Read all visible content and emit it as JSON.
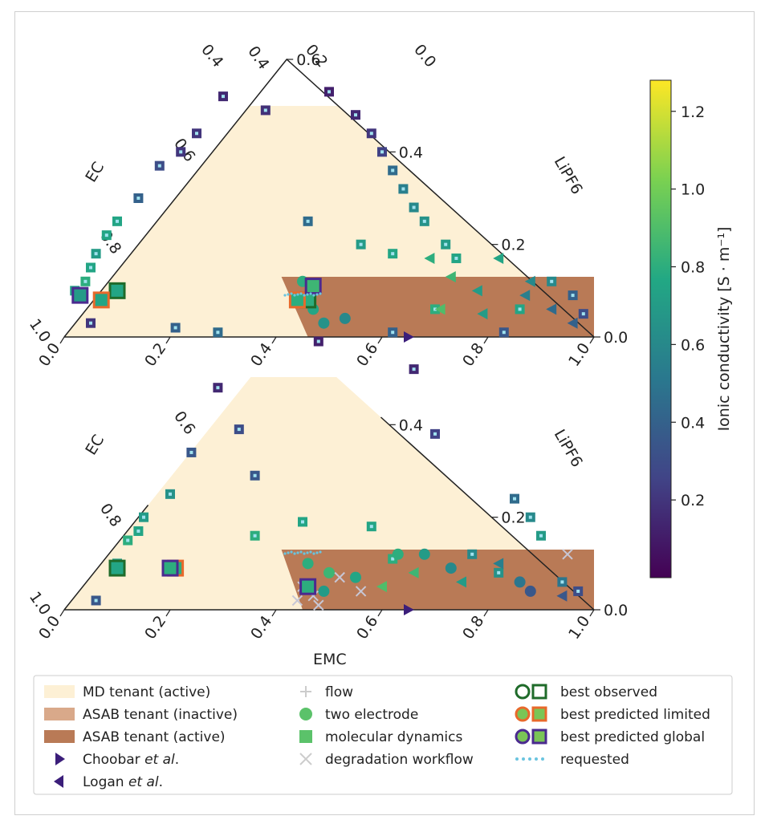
{
  "chart_data": [
    {
      "type": "scatter",
      "panel": "top",
      "axes": {
        "bottom": {
          "label": "",
          "ticks": [
            "0.0",
            "0.2",
            "0.4",
            "0.6",
            "0.8",
            "1.0"
          ]
        },
        "left": {
          "label": "EC",
          "ticks": [
            "1.0",
            "0.8",
            "0.6",
            "0.4"
          ]
        },
        "top": {
          "ticks": [
            "0.4",
            "0.2",
            "0.0"
          ]
        },
        "right": {
          "label": "LiPF6",
          "ticks": [
            "0.0",
            "0.2",
            "0.4",
            "0.6"
          ]
        }
      },
      "regions": [
        {
          "name": "MD tenant (active)",
          "color": "#fdf0d5",
          "polygon": [
            [
              0.0,
              0.0
            ],
            [
              0.0,
              0.58
            ],
            [
              0.42,
              0.58
            ],
            [
              1.0,
              0.0
            ]
          ]
        },
        {
          "name": "ASAB tenant (active)",
          "color": "#b97a56",
          "polygon": [
            [
              0.46,
              0.0
            ],
            [
              0.41,
              0.13
            ],
            [
              1.0,
              0.13
            ],
            [
              1.0,
              0.0
            ]
          ]
        }
      ],
      "series": [
        {
          "name": "molecular dynamics",
          "marker": "square",
          "points": [
            [
              0.05,
              0.03,
              0.2
            ],
            [
              0.21,
              0.02,
              0.4
            ],
            [
              0.29,
              0.01,
              0.45
            ],
            [
              0.62,
              0.01,
              0.4
            ],
            [
              0.83,
              0.01,
              0.35
            ],
            [
              0.02,
              0.1,
              0.75
            ],
            [
              0.04,
              0.12,
              0.8
            ],
            [
              0.05,
              0.15,
              0.75
            ],
            [
              0.06,
              0.18,
              0.7
            ],
            [
              0.08,
              0.22,
              0.75
            ],
            [
              0.1,
              0.25,
              0.75
            ],
            [
              0.14,
              0.3,
              0.4
            ],
            [
              0.18,
              0.37,
              0.3
            ],
            [
              0.22,
              0.4,
              0.2
            ],
            [
              0.25,
              0.44,
              0.2
            ],
            [
              0.3,
              0.52,
              0.15
            ],
            [
              0.38,
              0.49,
              0.18
            ],
            [
              0.5,
              0.53,
              0.12
            ],
            [
              0.55,
              0.48,
              0.15
            ],
            [
              0.58,
              0.44,
              0.2
            ],
            [
              0.6,
              0.4,
              0.25
            ],
            [
              0.62,
              0.36,
              0.45
            ],
            [
              0.64,
              0.32,
              0.55
            ],
            [
              0.66,
              0.28,
              0.6
            ],
            [
              0.68,
              0.25,
              0.65
            ],
            [
              0.72,
              0.2,
              0.7
            ],
            [
              0.74,
              0.17,
              0.75
            ],
            [
              0.46,
              0.25,
              0.45
            ],
            [
              0.56,
              0.2,
              0.7
            ],
            [
              0.62,
              0.18,
              0.75
            ],
            [
              0.7,
              0.06,
              0.8
            ],
            [
              0.86,
              0.06,
              0.75
            ],
            [
              0.92,
              0.12,
              0.6
            ],
            [
              0.96,
              0.09,
              0.4
            ],
            [
              0.98,
              0.05,
              0.3
            ]
          ]
        },
        {
          "name": "two electrode",
          "marker": "circle",
          "points": [
            [
              0.45,
              0.12,
              0.8
            ],
            [
              0.47,
              0.1,
              0.85
            ],
            [
              0.47,
              0.06,
              0.75
            ],
            [
              0.53,
              0.04,
              0.6
            ],
            [
              0.49,
              0.03,
              0.65
            ],
            [
              0.44,
              0.08,
              0.8
            ]
          ]
        },
        {
          "name": "Logan et al.",
          "marker": "triangle-left",
          "points": [
            [
              0.69,
              0.17,
              0.8
            ],
            [
              0.82,
              0.17,
              0.75
            ],
            [
              0.73,
              0.13,
              0.85
            ],
            [
              0.88,
              0.12,
              0.6
            ],
            [
              0.78,
              0.1,
              0.7
            ],
            [
              0.87,
              0.09,
              0.55
            ],
            [
              0.71,
              0.06,
              0.9
            ],
            [
              0.79,
              0.05,
              0.7
            ],
            [
              0.92,
              0.06,
              0.45
            ],
            [
              0.96,
              0.03,
              0.4
            ]
          ]
        },
        {
          "name": "Choobar et al.",
          "marker": "triangle-right",
          "points": [
            [
              0.65,
              0.0,
              0.1
            ]
          ]
        },
        {
          "name": "best observed",
          "marker": "circle-square-outline",
          "points": [
            [
              0.1,
              0.1,
              0.75
            ],
            [
              0.46,
              0.08,
              0.8
            ]
          ]
        },
        {
          "name": "best predicted limited",
          "marker": "circle-square-outline",
          "points": [
            [
              0.07,
              0.08,
              0.75
            ],
            [
              0.44,
              0.08,
              0.8
            ]
          ]
        },
        {
          "name": "best predicted global",
          "marker": "circle-square-outline",
          "points": [
            [
              0.03,
              0.09,
              0.7
            ],
            [
              0.47,
              0.11,
              0.85
            ]
          ]
        }
      ]
    },
    {
      "type": "scatter",
      "panel": "bottom",
      "axes": {
        "bottom": {
          "label": "EMC",
          "ticks": [
            "0.0",
            "0.2",
            "0.4",
            "0.6",
            "0.8",
            "1.0"
          ]
        },
        "left": {
          "label": "EC",
          "ticks": [
            "1.0",
            "0.8",
            "0.6"
          ]
        },
        "right": {
          "label": "LiPF6",
          "ticks": [
            "0.0",
            "0.2",
            "0.4"
          ]
        }
      },
      "regions": [
        {
          "name": "MD tenant (active)",
          "color": "#fdf0d5",
          "polygon": [
            [
              0.0,
              0.0
            ],
            [
              0.0,
              0.58
            ],
            [
              0.42,
              0.58
            ],
            [
              1.0,
              0.0
            ]
          ]
        },
        {
          "name": "ASAB tenant (active)",
          "color": "#b97a56",
          "polygon": [
            [
              0.45,
              0.0
            ],
            [
              0.41,
              0.13
            ],
            [
              1.0,
              0.13
            ],
            [
              1.0,
              0.0
            ]
          ]
        }
      ],
      "series": [
        {
          "name": "molecular dynamics",
          "marker": "square",
          "points": [
            [
              0.06,
              0.02,
              0.35
            ],
            [
              0.1,
              0.1,
              0.7
            ],
            [
              0.12,
              0.15,
              0.8
            ],
            [
              0.14,
              0.17,
              0.75
            ],
            [
              0.15,
              0.2,
              0.7
            ],
            [
              0.2,
              0.25,
              0.65
            ],
            [
              0.24,
              0.34,
              0.35
            ],
            [
              0.29,
              0.48,
              0.15
            ],
            [
              0.33,
              0.39,
              0.3
            ],
            [
              0.36,
              0.29,
              0.35
            ],
            [
              0.48,
              0.58,
              0.12
            ],
            [
              0.66,
              0.52,
              0.15
            ],
            [
              0.7,
              0.38,
              0.25
            ],
            [
              0.85,
              0.24,
              0.45
            ],
            [
              0.88,
              0.2,
              0.6
            ],
            [
              0.9,
              0.16,
              0.7
            ],
            [
              0.94,
              0.06,
              0.5
            ],
            [
              0.97,
              0.04,
              0.3
            ],
            [
              0.36,
              0.16,
              0.8
            ],
            [
              0.45,
              0.19,
              0.75
            ],
            [
              0.58,
              0.18,
              0.75
            ],
            [
              0.62,
              0.11,
              0.8
            ],
            [
              0.77,
              0.12,
              0.6
            ],
            [
              0.82,
              0.08,
              0.65
            ]
          ]
        },
        {
          "name": "two electrode",
          "marker": "circle",
          "points": [
            [
              0.46,
              0.1,
              0.8
            ],
            [
              0.5,
              0.08,
              0.85
            ],
            [
              0.55,
              0.07,
              0.75
            ],
            [
              0.63,
              0.12,
              0.8
            ],
            [
              0.68,
              0.12,
              0.7
            ],
            [
              0.49,
              0.04,
              0.7
            ],
            [
              0.73,
              0.09,
              0.6
            ],
            [
              0.86,
              0.06,
              0.5
            ],
            [
              0.88,
              0.04,
              0.35
            ]
          ]
        },
        {
          "name": "Logan et al.",
          "marker": "triangle-left",
          "points": [
            [
              0.66,
              0.08,
              0.85
            ],
            [
              0.75,
              0.06,
              0.7
            ],
            [
              0.82,
              0.1,
              0.55
            ],
            [
              0.6,
              0.05,
              0.9
            ],
            [
              0.94,
              0.03,
              0.35
            ]
          ]
        },
        {
          "name": "degradation workflow",
          "marker": "x",
          "points": [
            [
              0.45,
              0.05,
              0.0
            ],
            [
              0.47,
              0.03,
              0.0
            ],
            [
              0.52,
              0.07,
              0.0
            ],
            [
              0.56,
              0.04,
              0.0
            ],
            [
              0.44,
              0.02,
              0.0
            ],
            [
              0.95,
              0.12,
              0.0
            ],
            [
              0.48,
              0.01,
              0.0
            ]
          ]
        },
        {
          "name": "Choobar et al.",
          "marker": "triangle-right",
          "points": [
            [
              0.65,
              0.0,
              0.1
            ]
          ]
        },
        {
          "name": "best observed",
          "marker": "circle-square-outline",
          "points": [
            [
              0.1,
              0.09,
              0.75
            ]
          ]
        },
        {
          "name": "best predicted limited",
          "marker": "circle-square-outline",
          "points": [
            [
              0.21,
              0.09,
              0.8
            ]
          ]
        },
        {
          "name": "best predicted global",
          "marker": "circle-square-outline",
          "points": [
            [
              0.2,
              0.09,
              0.8
            ],
            [
              0.46,
              0.05,
              0.8
            ]
          ]
        }
      ]
    }
  ],
  "colorbar": {
    "label": "Ionic conductivity [S · m⁻¹]",
    "range": [
      0.0,
      1.28
    ],
    "ticks": [
      "0.2",
      "0.4",
      "0.6",
      "0.8",
      "1.0",
      "1.2"
    ],
    "colors": [
      "#440154",
      "#414487",
      "#2a788e",
      "#22a884",
      "#7ad151",
      "#fde725"
    ]
  },
  "legend": {
    "col1": [
      {
        "label": "MD tenant (active)",
        "symbol": "patch",
        "color": "#fdf0d5"
      },
      {
        "label": "ASAB tenant (inactive)",
        "symbol": "patch",
        "color": "#d9a98a"
      },
      {
        "label": "ASAB tenant (active)",
        "symbol": "patch",
        "color": "#b97a56"
      },
      {
        "label_parts": [
          "Choobar ",
          "et al",
          "."
        ],
        "symbol": "triangle-right",
        "color": "#3b1e7a"
      },
      {
        "label_parts": [
          "Logan ",
          "et al",
          "."
        ],
        "symbol": "triangle-left",
        "color": "#3b1e7a"
      }
    ],
    "col2": [
      {
        "label": "flow",
        "symbol": "plus",
        "color": "#cccccc"
      },
      {
        "label": "two electrode",
        "symbol": "circle",
        "color": "#5bc26a"
      },
      {
        "label": "molecular dynamics",
        "symbol": "square",
        "color": "#5bc26a"
      },
      {
        "label": "degradation workflow",
        "symbol": "x",
        "color": "#cccccc"
      }
    ],
    "col3": [
      {
        "label": "best observed",
        "symbol": "best",
        "color": "#1f6b2a"
      },
      {
        "label": "best predicted limited",
        "symbol": "best",
        "color": "#e8692b"
      },
      {
        "label": "best predicted global",
        "symbol": "best",
        "color": "#4b2a8f"
      },
      {
        "label": "requested",
        "symbol": "dots",
        "color": "#6ac4df"
      }
    ]
  }
}
